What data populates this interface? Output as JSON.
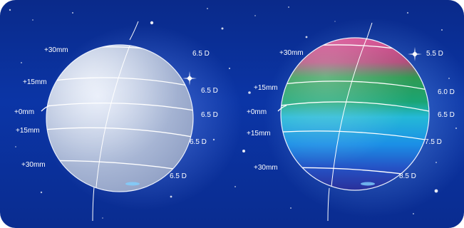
{
  "colors": {
    "background": "#0b35a6",
    "left_lens": "#a9b8d8",
    "curve_line": "#ffffff"
  },
  "left_lens": {
    "height_labels": [
      "+30mm",
      "+15mm",
      "+0mm",
      "+15mm",
      "+30mm"
    ],
    "power_labels": [
      "6.5 D",
      "6.5 D",
      "6.5 D",
      "6.5 D",
      "6.5 D"
    ]
  },
  "right_lens": {
    "height_labels": [
      "+30mm",
      "+15mm",
      "+0mm",
      "+15mm",
      "+30mm"
    ],
    "power_labels": [
      "5.5 D",
      "6.0 D",
      "6.5 D",
      "7.5 D",
      "8.5 D"
    ],
    "band_colors": [
      "#c83a8c",
      "#2aa860",
      "#2fb6e0",
      "#1a7fe0",
      "#2a3fb0"
    ]
  }
}
